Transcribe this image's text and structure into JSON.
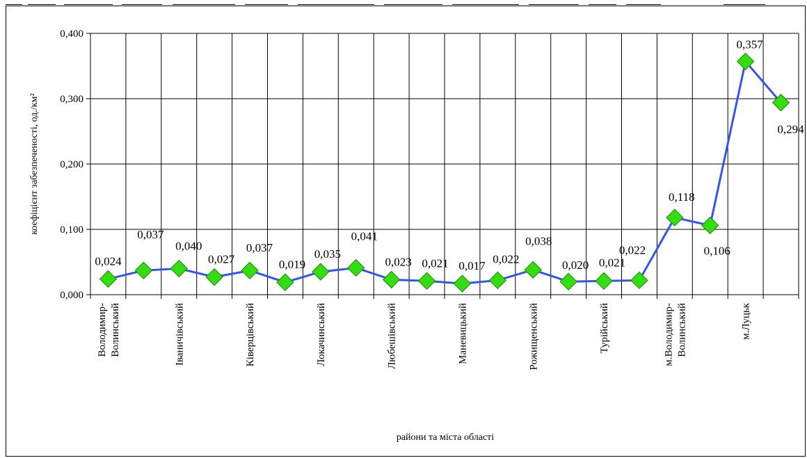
{
  "chart_data": {
    "type": "line",
    "title": "",
    "xlabel": "райони та міста області",
    "ylabel": "коефіцієнт забезпеченості, од./км²",
    "ylim": [
      0,
      0.4
    ],
    "y_ticks": [
      "0,000",
      "0,100",
      "0,200",
      "0,300",
      "0,400"
    ],
    "grid": true,
    "legend": "none",
    "category_labels": [
      [
        "Володимир-",
        "Волинський"
      ],
      [],
      [
        "Іваничівський"
      ],
      [],
      [
        "Ківерцівський"
      ],
      [],
      [
        "Локачинський"
      ],
      [],
      [
        "Любешівський"
      ],
      [],
      [
        "Маневицький"
      ],
      [],
      [
        "Рожищенський"
      ],
      [],
      [
        "Турійський"
      ],
      [],
      [
        "м.Володимир-",
        "Волинський"
      ],
      [],
      [
        "м.Луцьк"
      ],
      []
    ],
    "values": [
      0.024,
      0.037,
      0.04,
      0.027,
      0.037,
      0.019,
      0.035,
      0.041,
      0.023,
      0.021,
      0.017,
      0.022,
      0.038,
      0.02,
      0.021,
      0.022,
      0.118,
      0.106,
      0.357,
      0.294
    ],
    "value_labels": [
      "0,024",
      "0,037",
      "0,040",
      "0,027",
      "0,037",
      "0,019",
      "0,035",
      "0,041",
      "0,023",
      "0,021",
      "0,017",
      "0,022",
      "0,038",
      "0,020",
      "0,021",
      "0,022",
      "0,118",
      "0,106",
      "0,357",
      "0,294"
    ],
    "colors": {
      "line": "#3355ee",
      "marker_fill": "#33dd11",
      "marker_stroke": "#1a8a00",
      "grid": "#000000"
    }
  }
}
